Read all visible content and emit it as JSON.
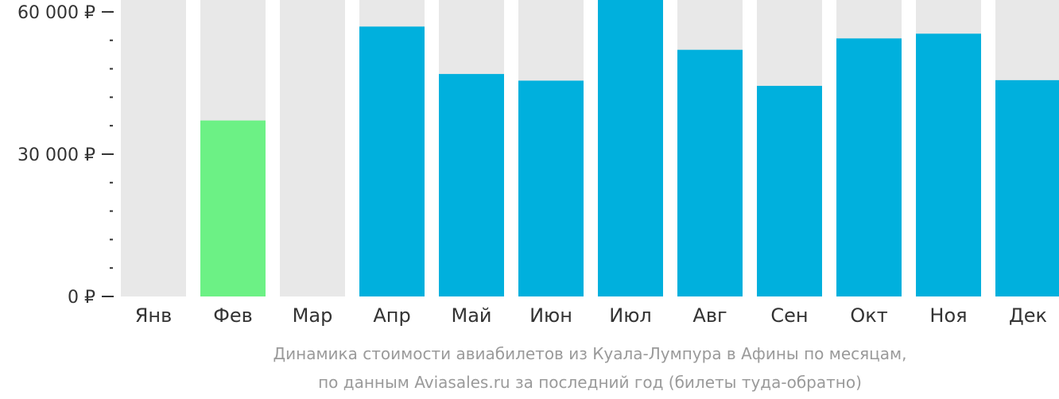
{
  "chart_data": {
    "type": "bar",
    "categories": [
      "Янв",
      "Фев",
      "Мар",
      "Апр",
      "Май",
      "Июн",
      "Июл",
      "Авг",
      "Сен",
      "Окт",
      "Ноя",
      "Дек"
    ],
    "values": [
      null,
      37100,
      null,
      56900,
      46900,
      45500,
      62500,
      52000,
      44400,
      54400,
      55400,
      45600
    ],
    "highlight": [
      "none",
      "cheapest",
      "none",
      "normal",
      "normal",
      "normal",
      "normal",
      "normal",
      "normal",
      "normal",
      "normal",
      "normal"
    ],
    "ylim": [
      0,
      62500
    ],
    "yticks": [
      {
        "value": 0,
        "label": "0 ₽"
      },
      {
        "value": 30000,
        "label": "30 000 ₽"
      },
      {
        "value": 60000,
        "label": "60 000 ₽"
      }
    ],
    "minor_tick_step": 6000,
    "caption": [
      "Динамика стоимости авиабилетов из Куала-Лумпура в Афины по месяцам,",
      "по данным Aviasales.ru за последний год (билеты туда-обратно)"
    ],
    "colors": {
      "background_bar": "#e8e8e8",
      "bar": "#00b0dd",
      "cheapest_bar": "#6cf185",
      "axis": "#333333"
    }
  }
}
